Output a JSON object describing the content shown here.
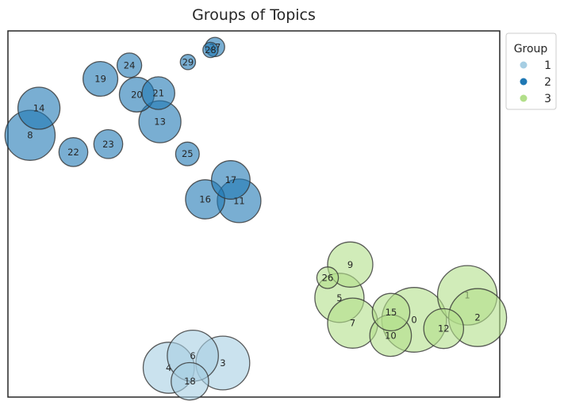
{
  "chart_data": {
    "type": "scatter",
    "title": "Groups of Topics",
    "xlabel": "",
    "ylabel": "",
    "xlim": [
      0,
      100
    ],
    "ylim": [
      0,
      100
    ],
    "grid": false,
    "axes_visible": false,
    "legend": {
      "title": "Group",
      "placement": "outside-top-right",
      "entries": [
        {
          "label": "1",
          "color": "#a6cee3"
        },
        {
          "label": "2",
          "color": "#1f78b4"
        },
        {
          "label": "3",
          "color": "#b2df8a"
        }
      ]
    },
    "groups": {
      "1": "#a6cee3",
      "2": "#1f78b4",
      "3": "#b2df8a"
    },
    "points": [
      {
        "label": "0",
        "group": "3",
        "x": 82.6,
        "y": 21.1,
        "size": 900
      },
      {
        "label": "1",
        "group": "3",
        "x": 93.4,
        "y": 27.8,
        "size": 760
      },
      {
        "label": "2",
        "group": "3",
        "x": 95.5,
        "y": 21.7,
        "size": 720
      },
      {
        "label": "3",
        "group": "1",
        "x": 43.7,
        "y": 9.3,
        "size": 620
      },
      {
        "label": "4",
        "group": "1",
        "x": 32.7,
        "y": 8.0,
        "size": 560
      },
      {
        "label": "5",
        "group": "3",
        "x": 67.4,
        "y": 27.1,
        "size": 520
      },
      {
        "label": "6",
        "group": "1",
        "x": 37.6,
        "y": 11.3,
        "size": 560
      },
      {
        "label": "7",
        "group": "3",
        "x": 70.1,
        "y": 20.2,
        "size": 540
      },
      {
        "label": "8",
        "group": "2",
        "x": 4.5,
        "y": 71.5,
        "size": 540
      },
      {
        "label": "9",
        "group": "3",
        "x": 69.6,
        "y": 36.2,
        "size": 440
      },
      {
        "label": "10",
        "group": "3",
        "x": 77.8,
        "y": 16.8,
        "size": 370
      },
      {
        "label": "11",
        "group": "2",
        "x": 47.0,
        "y": 53.6,
        "size": 410
      },
      {
        "label": "12",
        "group": "3",
        "x": 88.6,
        "y": 18.7,
        "size": 340
      },
      {
        "label": "13",
        "group": "2",
        "x": 30.9,
        "y": 75.2,
        "size": 380
      },
      {
        "label": "14",
        "group": "2",
        "x": 6.3,
        "y": 78.9,
        "size": 380
      },
      {
        "label": "15",
        "group": "3",
        "x": 77.9,
        "y": 23.2,
        "size": 300
      },
      {
        "label": "16",
        "group": "2",
        "x": 40.1,
        "y": 54.0,
        "size": 330
      },
      {
        "label": "17",
        "group": "2",
        "x": 45.3,
        "y": 59.3,
        "size": 320
      },
      {
        "label": "18",
        "group": "1",
        "x": 37.0,
        "y": 4.3,
        "size": 300
      },
      {
        "label": "19",
        "group": "2",
        "x": 18.8,
        "y": 86.9,
        "size": 260
      },
      {
        "label": "20",
        "group": "2",
        "x": 26.2,
        "y": 82.6,
        "size": 260
      },
      {
        "label": "21",
        "group": "2",
        "x": 30.6,
        "y": 83.0,
        "size": 230
      },
      {
        "label": "22",
        "group": "2",
        "x": 13.3,
        "y": 66.9,
        "size": 180
      },
      {
        "label": "23",
        "group": "2",
        "x": 20.4,
        "y": 69.1,
        "size": 180
      },
      {
        "label": "24",
        "group": "2",
        "x": 24.7,
        "y": 90.6,
        "size": 130
      },
      {
        "label": "25",
        "group": "2",
        "x": 36.5,
        "y": 66.4,
        "size": 120
      },
      {
        "label": "26",
        "group": "3",
        "x": 65.0,
        "y": 32.6,
        "size": 100
      },
      {
        "label": "27",
        "group": "2",
        "x": 42.1,
        "y": 95.6,
        "size": 80
      },
      {
        "label": "28",
        "group": "2",
        "x": 41.2,
        "y": 94.8,
        "size": 50
      },
      {
        "label": "29",
        "group": "2",
        "x": 36.6,
        "y": 91.5,
        "size": 50
      }
    ]
  }
}
